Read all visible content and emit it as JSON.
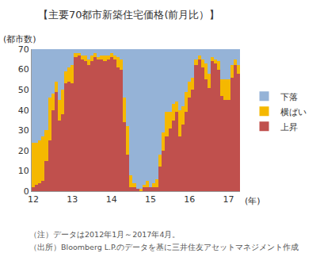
{
  "chart_data": {
    "type": "bar",
    "title": "【主要70都市新築住宅価格(前月比）】",
    "y_label": "(都市数)",
    "x_label": "(年)",
    "annotations": [
      "（注）データは2012年1月～2017年4月。",
      "（出所）Bloomberg L.P.のデータを基に三井住友アセットマネジメント作成"
    ],
    "stacked": true,
    "legend": "right",
    "grid": false,
    "categories": [
      "12",
      null,
      null,
      null,
      null,
      null,
      null,
      null,
      null,
      null,
      null,
      null,
      "13",
      null,
      null,
      null,
      null,
      null,
      null,
      null,
      null,
      null,
      null,
      null,
      "14",
      null,
      null,
      null,
      null,
      null,
      null,
      null,
      null,
      null,
      null,
      null,
      "15",
      null,
      null,
      null,
      null,
      null,
      null,
      null,
      null,
      null,
      null,
      null,
      "16",
      null,
      null,
      null,
      null,
      null,
      null,
      null,
      null,
      null,
      null,
      null,
      "17",
      null,
      null,
      null
    ],
    "series": [
      {
        "name": "上昇",
        "color": "#c0504d",
        "values": [
          2,
          3,
          4,
          5,
          15,
          25,
          40,
          49,
          35,
          38,
          53,
          54,
          53,
          66,
          67,
          65,
          64,
          62,
          64,
          66,
          65,
          65,
          64,
          65,
          66,
          65,
          61,
          60,
          34,
          18,
          2,
          2,
          1,
          0,
          2,
          2,
          2,
          2,
          2,
          12,
          20,
          27,
          31,
          35,
          39,
          27,
          33,
          39,
          46,
          50,
          62,
          65,
          61,
          55,
          51,
          64,
          63,
          60,
          47,
          45,
          45,
          56,
          62,
          58
        ]
      },
      {
        "name": "横ばい",
        "color": "#f5b800",
        "values": [
          22,
          21,
          21,
          22,
          15,
          21,
          8,
          5,
          10,
          12,
          6,
          7,
          9,
          2,
          1,
          2,
          3,
          3,
          3,
          2,
          1,
          2,
          3,
          2,
          2,
          2,
          5,
          5,
          12,
          14,
          6,
          2,
          0,
          1,
          1,
          3,
          0,
          2,
          4,
          6,
          9,
          12,
          8,
          8,
          5,
          13,
          9,
          10,
          8,
          6,
          3,
          2,
          4,
          8,
          7,
          2,
          2,
          4,
          8,
          10,
          10,
          6,
          3,
          4
        ]
      },
      {
        "name": "下落",
        "color": "#95b3d7",
        "values": [
          46,
          46,
          45,
          43,
          40,
          24,
          22,
          16,
          25,
          20,
          11,
          9,
          8,
          2,
          2,
          3,
          3,
          5,
          3,
          2,
          4,
          3,
          3,
          3,
          2,
          3,
          4,
          5,
          24,
          38,
          62,
          66,
          69,
          69,
          67,
          65,
          68,
          66,
          64,
          52,
          41,
          31,
          31,
          27,
          26,
          30,
          28,
          21,
          16,
          14,
          5,
          3,
          5,
          7,
          12,
          4,
          5,
          6,
          15,
          15,
          15,
          8,
          5,
          8
        ]
      }
    ],
    "ylim": [
      0,
      70
    ],
    "yticks": [
      0,
      10,
      20,
      30,
      40,
      50,
      60,
      70
    ]
  }
}
